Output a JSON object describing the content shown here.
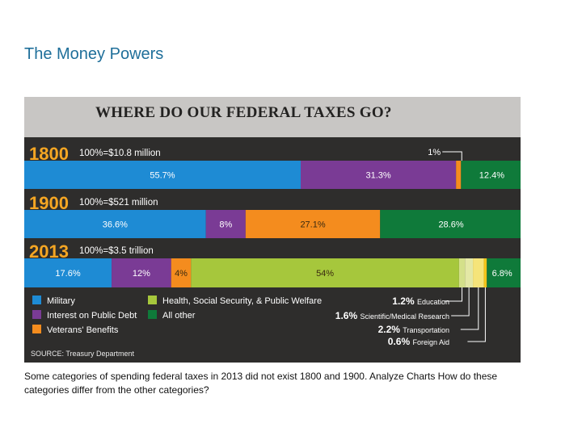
{
  "slide": {
    "title": "The Money Powers",
    "caption": "Some categories of spending federal taxes in 2013 did not exist 1800 and 1900. Analyze Charts How do these categories differ from the other categories?"
  },
  "chart_data": {
    "type": "bar",
    "orientation": "horizontal-stacked-100",
    "title": "WHERE DO OUR FEDERAL TAXES GO?",
    "source": "SOURCE: Treasury Department",
    "colors": {
      "Military": "#1e8bd4",
      "Interest on Public Debt": "#7a3b95",
      "Veterans' Benefits": "#f48c1e",
      "Health, Social Security, & Public Welfare": "#a6c73c",
      "All other": "#0f7a3a",
      "Education": "#d4e08a",
      "Scientific/Medical Research": "#e4e8a6",
      "Transportation": "#f5e47a",
      "Foreign Aid": "#f2c419"
    },
    "rows": [
      {
        "year": "1800",
        "total": "100%=$10.8 million",
        "segments": [
          {
            "category": "Military",
            "value": 55.7,
            "label": "55.7%"
          },
          {
            "category": "Interest on Public Debt",
            "value": 31.3,
            "label": "31.3%"
          },
          {
            "category": "Veterans' Benefits",
            "value": 1,
            "label": "1%",
            "callout": true
          },
          {
            "category": "All other",
            "value": 12.4,
            "label": "12.4%"
          }
        ]
      },
      {
        "year": "1900",
        "total": "100%=$521 million",
        "segments": [
          {
            "category": "Military",
            "value": 36.6,
            "label": "36.6%"
          },
          {
            "category": "Interest on Public Debt",
            "value": 8,
            "label": "8%"
          },
          {
            "category": "Veterans' Benefits",
            "value": 27.1,
            "label": "27.1%"
          },
          {
            "category": "All other",
            "value": 28.6,
            "label": "28.6%"
          }
        ]
      },
      {
        "year": "2013",
        "total": "100%=$3.5 trillion",
        "segments": [
          {
            "category": "Military",
            "value": 17.6,
            "label": "17.6%"
          },
          {
            "category": "Interest on Public Debt",
            "value": 12,
            "label": "12%"
          },
          {
            "category": "Veterans' Benefits",
            "value": 4,
            "label": "4%"
          },
          {
            "category": "Health, Social Security, & Public Welfare",
            "value": 54,
            "label": "54%"
          },
          {
            "category": "Education",
            "value": 1.2,
            "label": "1.2%",
            "callout": true
          },
          {
            "category": "Scientific/Medical Research",
            "value": 1.6,
            "label": "1.6%",
            "callout": true
          },
          {
            "category": "Transportation",
            "value": 2.2,
            "label": "2.2%",
            "callout": true
          },
          {
            "category": "Foreign Aid",
            "value": 0.6,
            "label": "0.6%",
            "callout": true
          },
          {
            "category": "All other",
            "value": 6.8,
            "label": "6.8%"
          }
        ]
      }
    ],
    "legend": [
      {
        "label": "Military",
        "color": "#1e8bd4"
      },
      {
        "label": "Interest on Public Debt",
        "color": "#7a3b95"
      },
      {
        "label": "Veterans' Benefits",
        "color": "#f48c1e"
      },
      {
        "label": "Health, Social Security, & Public Welfare",
        "color": "#a6c73c"
      },
      {
        "label": "All other",
        "color": "#0f7a3a"
      }
    ],
    "callouts": [
      {
        "value": "1.2%",
        "name": "Education"
      },
      {
        "value": "1.6%",
        "name": "Scientific/Medical Research"
      },
      {
        "value": "2.2%",
        "name": "Transportation"
      },
      {
        "value": "0.6%",
        "name": "Foreign Aid"
      }
    ]
  }
}
